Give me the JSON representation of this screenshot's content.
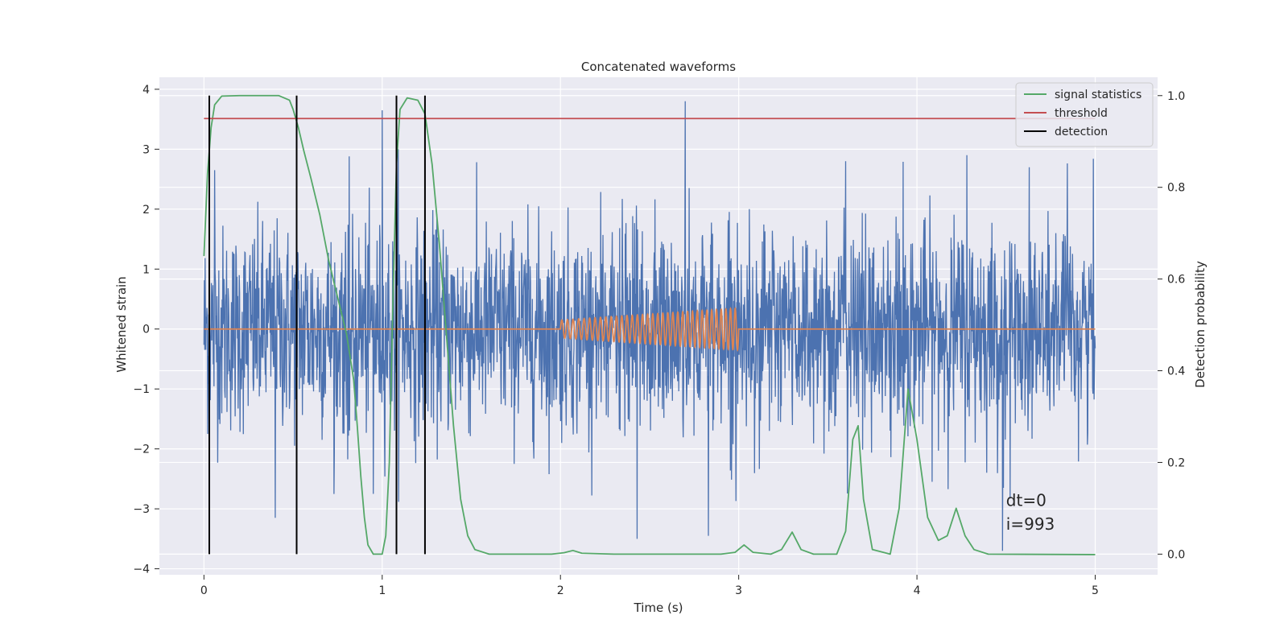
{
  "chart_data": {
    "type": "line",
    "title": "Concatenated waveforms",
    "xlabel": "Time (s)",
    "ylabel": "Whitened strain",
    "ylabel_right": "Detection probability",
    "xlim": [
      -0.25,
      5.35
    ],
    "ylim": [
      -4.1,
      4.2
    ],
    "ylim_right": [
      -0.045,
      1.04
    ],
    "xticks": [
      0,
      1,
      2,
      3,
      4,
      5
    ],
    "yticks": [
      -4,
      -3,
      -2,
      -1,
      0,
      1,
      2,
      3,
      4
    ],
    "yticks_right": [
      0.0,
      0.2,
      0.4,
      0.6,
      0.8,
      1.0
    ],
    "yticks_right_labels": [
      "0.0",
      "0.2",
      "0.4",
      "0.6",
      "0.8",
      "1.0"
    ],
    "grid": true,
    "legend_position": "top-right",
    "series": [
      {
        "name": "",
        "color": "#4c72b0",
        "axis": "left",
        "kind": "noise",
        "x_range": [
          0,
          5
        ],
        "sigma": 0.85,
        "spikes": [
          [
            0.06,
            2.65
          ],
          [
            1.0,
            3.65
          ],
          [
            1.09,
            3.0
          ],
          [
            2.7,
            3.8
          ],
          [
            3.6,
            2.8
          ],
          [
            4.28,
            2.9
          ],
          [
            4.63,
            2.7
          ],
          [
            2.43,
            -3.5
          ],
          [
            2.83,
            -3.45
          ],
          [
            0.4,
            -3.15
          ],
          [
            4.48,
            -3.7
          ],
          [
            0.95,
            -2.75
          ]
        ]
      },
      {
        "name": "",
        "color": "#dd8452",
        "axis": "left",
        "kind": "chirp",
        "x_range": [
          2.0,
          3.0
        ],
        "amplitude_start": 0.15,
        "amplitude_end": 0.35,
        "cycles": 35
      },
      {
        "name": "signal statistics",
        "color": "#55a868",
        "axis": "right",
        "points": [
          [
            0.0,
            0.65
          ],
          [
            0.02,
            0.83
          ],
          [
            0.04,
            0.93
          ],
          [
            0.06,
            0.98
          ],
          [
            0.1,
            0.999
          ],
          [
            0.2,
            1.0
          ],
          [
            0.42,
            1.0
          ],
          [
            0.48,
            0.99
          ],
          [
            0.5,
            0.97
          ],
          [
            0.53,
            0.93
          ],
          [
            0.56,
            0.88
          ],
          [
            0.6,
            0.82
          ],
          [
            0.65,
            0.74
          ],
          [
            0.7,
            0.64
          ],
          [
            0.75,
            0.56
          ],
          [
            0.8,
            0.48
          ],
          [
            0.84,
            0.38
          ],
          [
            0.86,
            0.28
          ],
          [
            0.88,
            0.17
          ],
          [
            0.9,
            0.08
          ],
          [
            0.92,
            0.02
          ],
          [
            0.95,
            0.0
          ],
          [
            1.0,
            0.0
          ],
          [
            1.02,
            0.04
          ],
          [
            1.04,
            0.2
          ],
          [
            1.06,
            0.55
          ],
          [
            1.08,
            0.85
          ],
          [
            1.1,
            0.97
          ],
          [
            1.14,
            0.995
          ],
          [
            1.2,
            0.99
          ],
          [
            1.24,
            0.96
          ],
          [
            1.28,
            0.85
          ],
          [
            1.32,
            0.68
          ],
          [
            1.36,
            0.48
          ],
          [
            1.4,
            0.28
          ],
          [
            1.44,
            0.12
          ],
          [
            1.48,
            0.04
          ],
          [
            1.52,
            0.01
          ],
          [
            1.6,
            0.0
          ],
          [
            1.95,
            0.0
          ],
          [
            2.02,
            0.003
          ],
          [
            2.07,
            0.008
          ],
          [
            2.12,
            0.002
          ],
          [
            2.3,
            0.0
          ],
          [
            2.9,
            0.0
          ],
          [
            2.98,
            0.004
          ],
          [
            3.03,
            0.02
          ],
          [
            3.08,
            0.004
          ],
          [
            3.18,
            0.0
          ],
          [
            3.24,
            0.01
          ],
          [
            3.3,
            0.048
          ],
          [
            3.35,
            0.01
          ],
          [
            3.42,
            0.0
          ],
          [
            3.55,
            0.0
          ],
          [
            3.6,
            0.05
          ],
          [
            3.64,
            0.25
          ],
          [
            3.67,
            0.28
          ],
          [
            3.7,
            0.12
          ],
          [
            3.75,
            0.01
          ],
          [
            3.85,
            0.0
          ],
          [
            3.9,
            0.1
          ],
          [
            3.95,
            0.36
          ],
          [
            4.0,
            0.25
          ],
          [
            4.06,
            0.08
          ],
          [
            4.12,
            0.03
          ],
          [
            4.17,
            0.04
          ],
          [
            4.22,
            0.1
          ],
          [
            4.27,
            0.04
          ],
          [
            4.32,
            0.01
          ],
          [
            4.4,
            0.0
          ],
          [
            5.0,
            -0.001
          ]
        ]
      },
      {
        "name": "threshold",
        "color": "#c44e52",
        "axis": "right",
        "points": [
          [
            0.0,
            0.95
          ],
          [
            5.0,
            0.95
          ]
        ]
      },
      {
        "name": "detection",
        "color": "#000000",
        "axis": "right",
        "kind": "vlines",
        "x": [
          0.03,
          0.52,
          1.08,
          1.24
        ],
        "y_range": [
          0.0,
          1.0
        ]
      }
    ],
    "annotations": [
      {
        "text": "dt=0",
        "x": 4.5,
        "y": -2.95
      },
      {
        "text": "i=993",
        "x": 4.5,
        "y": -3.35
      }
    ]
  }
}
